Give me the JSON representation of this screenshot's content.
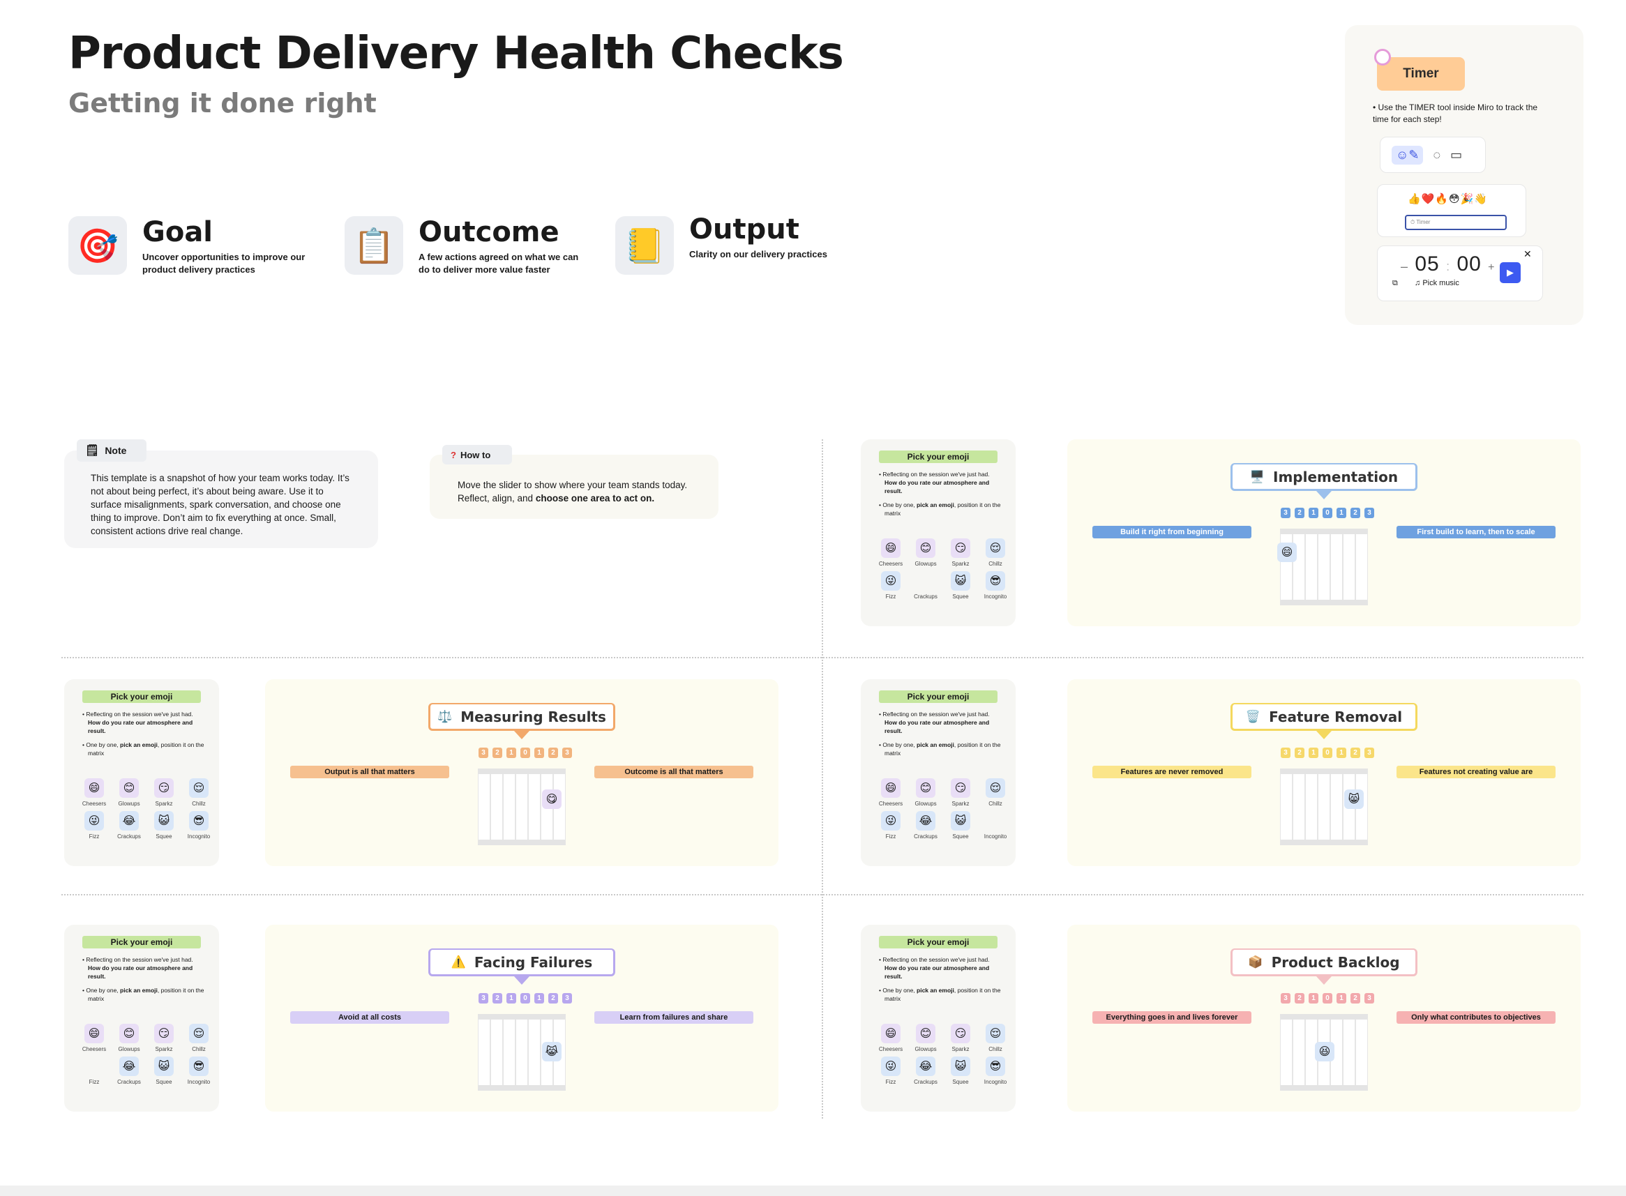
{
  "header": {
    "title": "Product Delivery Health Checks",
    "subtitle": "Getting it done right"
  },
  "goals": [
    {
      "title": "Goal",
      "desc": "Uncover opportunities to improve our product delivery practices",
      "icon": "target-icon",
      "glyph": "🎯"
    },
    {
      "title": "Outcome",
      "desc": "A few actions agreed on what we can do to deliver more value faster",
      "icon": "clipboard-icon",
      "glyph": "📋"
    },
    {
      "title": "Output",
      "desc": "Clarity on our delivery practices",
      "icon": "book-upload-icon",
      "glyph": "📒"
    }
  ],
  "timer": {
    "label": "Timer",
    "note": "Use the TIMER tool inside Miro to track the time for each step!",
    "input_placeholder": "Timer",
    "minutes": "05",
    "seconds": "00",
    "pick_music": "Pick music",
    "reactions": "👍❤️🔥😳🎉👋"
  },
  "note": {
    "tab": "Note",
    "text": "This template is a snapshot of how your team works today. It’s not about being perfect, it’s about being aware. Use it to surface misalignments, spark conversation, and choose one thing to improve. Don’t aim to fix everything at once. Small, consistent actions drive real change."
  },
  "howto": {
    "tab": "How to",
    "text_a": "Move the slider to show where your team stands today. Reflect, align, and ",
    "text_bold": "choose one area to act on."
  },
  "emoji_panel": {
    "title": "Pick your emoji",
    "line1_a": "Reflecting on the session we've just had. ",
    "line1_b": "How do you rate our atmosphere and result.",
    "line2_a": "One by one, ",
    "line2_b": "pick an emoji",
    "line2_c": ", position it on the matrix",
    "names": [
      "Cheesers",
      "Glowups",
      "Sparkz",
      "Chillz",
      "Fizz",
      "Crackups",
      "Squee",
      "Incognito"
    ]
  },
  "scale": [
    "3",
    "2",
    "1",
    "0",
    "1",
    "2",
    "3"
  ],
  "topics": [
    {
      "key": "implementation",
      "title": "Implementation",
      "glyph": "🖥️",
      "left": "Build it right from beginning",
      "right": "First build to learn, then to scale",
      "accent": "#6ea1e0",
      "box": "#9cc0ec",
      "num": "#6a9fe0",
      "chip": "#d8e6f8",
      "chip_glyph": "😄",
      "pos": 0
    },
    {
      "key": "measuring-results",
      "title": "Measuring Results",
      "glyph": "⚖️",
      "left": "Output is all that matters",
      "right": "Outcome is all that matters",
      "accent": "#f6c08f",
      "box": "#f2a86a",
      "num": "#f2b47e",
      "chip": "#e8ddf6",
      "chip_glyph": "😋",
      "pos": 4
    },
    {
      "key": "feature-removal",
      "title": "Feature Removal",
      "glyph": "🗑️",
      "left": "Features are never removed",
      "right": "Features not creating value are",
      "accent": "#fbe58a",
      "box": "#f4d85e",
      "num": "#f6d86a",
      "chip": "#d8e6f8",
      "chip_glyph": "😸",
      "pos": 4
    },
    {
      "key": "facing-failures",
      "title": "Facing Failures",
      "glyph": "⚠️",
      "left": "Avoid at all costs",
      "right": "Learn from failures and share",
      "accent": "#d8cff6",
      "box": "#b7a8ee",
      "num": "#b7a6ee",
      "chip": "#d8e6f8",
      "chip_glyph": "😹",
      "pos": 4
    },
    {
      "key": "product-backlog",
      "title": "Product Backlog",
      "glyph": "📦",
      "left": "Everything goes in and lives forever",
      "right": "Only what contributes to objectives",
      "accent": "#f6b2b2",
      "box": "#f3c0c4",
      "num": "#f2a8ac",
      "chip": "#d8e6f8",
      "chip_glyph": "😆",
      "pos": 3
    }
  ]
}
